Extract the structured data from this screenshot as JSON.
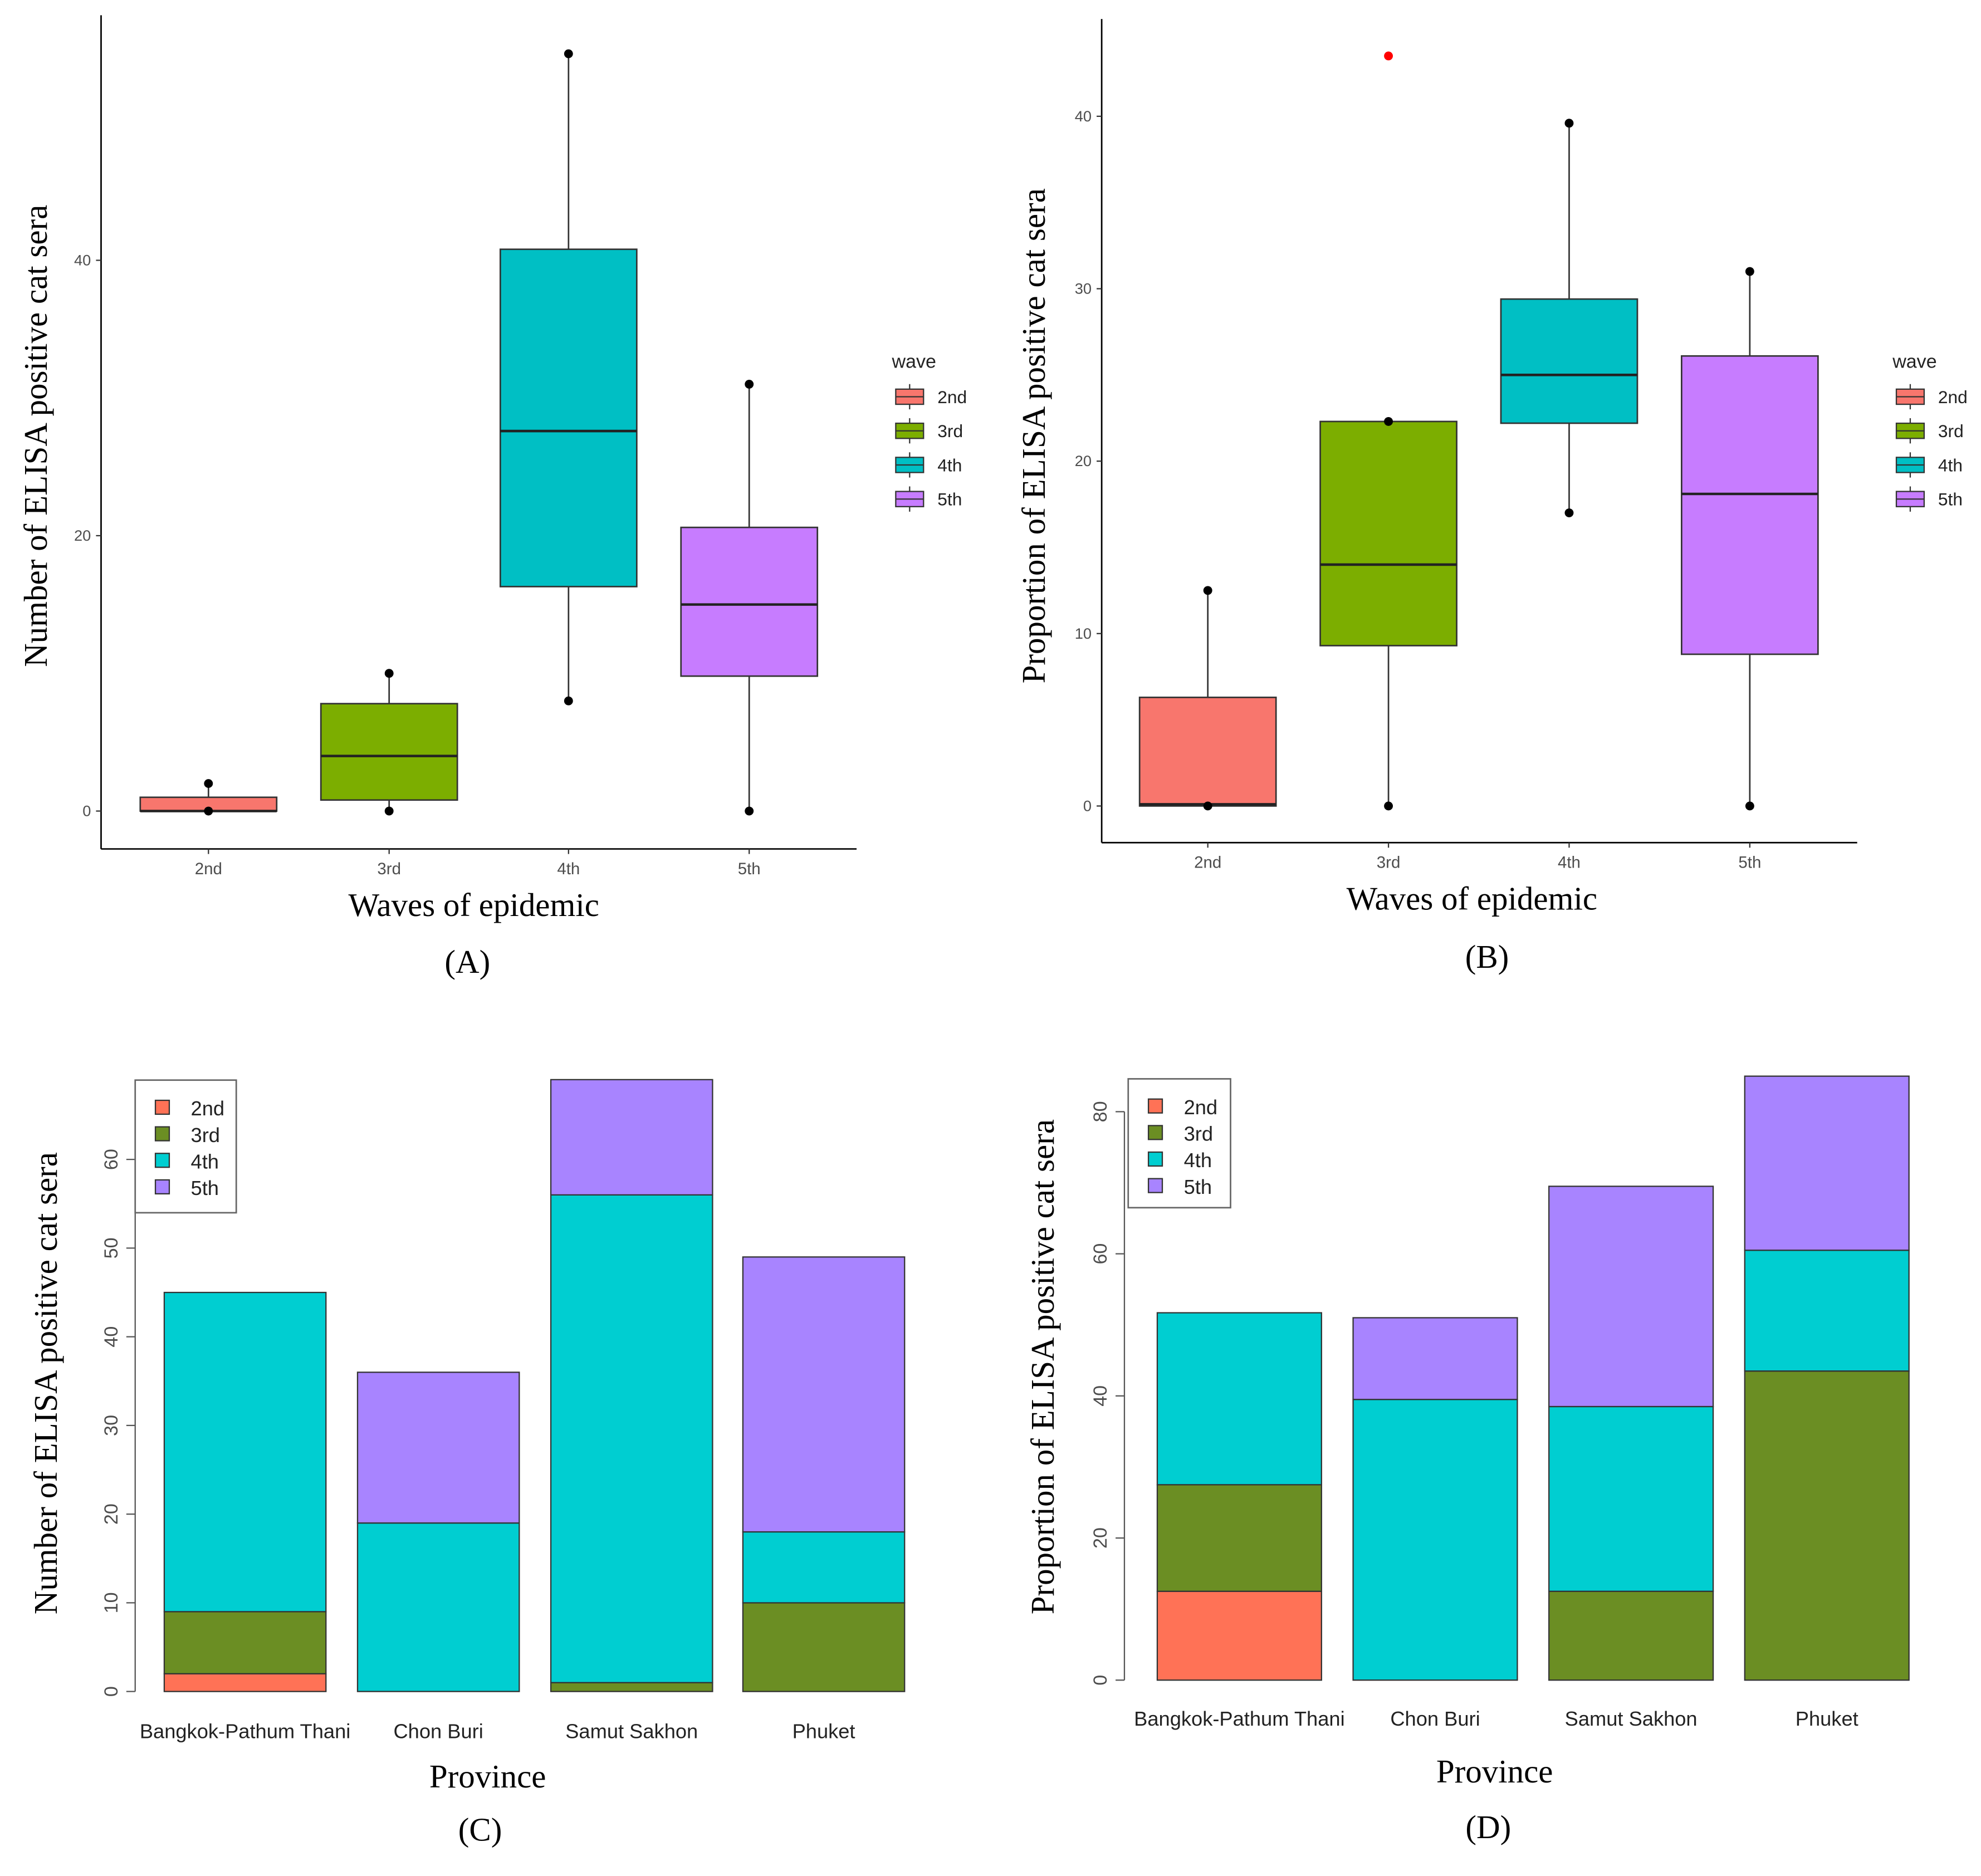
{
  "chart_data": [
    {
      "panel": "(A)",
      "type": "boxplot",
      "xlabel": "Waves of epidemic",
      "ylabel": "Number of  ELISA positive cat sera",
      "categories": [
        "2nd",
        "3rd",
        "4th",
        "5th"
      ],
      "yticks": [
        0,
        20,
        40
      ],
      "ylim": [
        -2.7,
        58
      ],
      "legend": {
        "title": "wave",
        "entries": [
          "2nd",
          "3rd",
          "4th",
          "5th"
        ],
        "placement": "right"
      },
      "colors": [
        "#F8766D",
        "#7CAE00",
        "#00BFC4",
        "#C77CFF"
      ],
      "boxes": [
        {
          "min": 0,
          "q1": 0,
          "median": 0,
          "q3": 1,
          "max": 2
        },
        {
          "min": 0,
          "q1": 0.8,
          "median": 4,
          "q3": 7.8,
          "max": 10
        },
        {
          "min": 8,
          "q1": 16.3,
          "median": 27.6,
          "q3": 40.8,
          "max": 55
        },
        {
          "min": 0,
          "q1": 9.8,
          "median": 15,
          "q3": 20.6,
          "max": 31
        }
      ],
      "outliers": []
    },
    {
      "panel": "(B)",
      "type": "boxplot",
      "xlabel": "Waves of epidemic",
      "ylabel": "Proportion of  ELISA positive cat sera",
      "categories": [
        "2nd",
        "3rd",
        "4th",
        "5th"
      ],
      "yticks": [
        0,
        10,
        20,
        30,
        40
      ],
      "ylim": [
        -2.1,
        45.5
      ],
      "legend": {
        "title": "wave",
        "entries": [
          "2nd",
          "3rd",
          "4th",
          "5th"
        ],
        "placement": "right"
      },
      "colors": [
        "#F8766D",
        "#7CAE00",
        "#00BFC4",
        "#C77CFF"
      ],
      "boxes": [
        {
          "min": 0,
          "q1": 0,
          "median": 0.1,
          "q3": 6.3,
          "max": 12.5
        },
        {
          "min": 0,
          "q1": 9.3,
          "median": 14,
          "q3": 22.3,
          "max": 22.3
        },
        {
          "min": 17,
          "q1": 22.2,
          "median": 25,
          "q3": 29.4,
          "max": 39.6
        },
        {
          "min": 0,
          "q1": 8.8,
          "median": 18.1,
          "q3": 26.1,
          "max": 31
        }
      ],
      "outliers": [
        {
          "category": "3rd",
          "value": 43.5,
          "color": "#FF0000"
        }
      ]
    },
    {
      "panel": "(C)",
      "type": "stacked-bar",
      "xlabel": "Province",
      "ylabel": "Number of  ELISA positive cat sera",
      "categories": [
        "Bangkok-Pathum Thani",
        "Chon Buri",
        "Samut Sakhon",
        "Phuket"
      ],
      "yticks": [
        0,
        10,
        20,
        30,
        40,
        50,
        60
      ],
      "ylim": [
        0,
        69
      ],
      "legend": {
        "entries": [
          "2nd",
          "3rd",
          "4th",
          "5th"
        ],
        "placement": "top-left"
      },
      "colors": [
        "#FF7256",
        "#6B8E23",
        "#00CED1",
        "#A884FF"
      ],
      "series": [
        {
          "name": "2nd",
          "values": [
            2,
            0,
            0,
            0
          ]
        },
        {
          "name": "3rd",
          "values": [
            7,
            0,
            1,
            10
          ]
        },
        {
          "name": "4th",
          "values": [
            36,
            19,
            55,
            8
          ]
        },
        {
          "name": "5th",
          "values": [
            0,
            17,
            13,
            31
          ]
        }
      ]
    },
    {
      "panel": "(D)",
      "type": "stacked-bar",
      "xlabel": "Province",
      "ylabel": "Proportion of  ELISA positive cat sera",
      "categories": [
        "Bangkok-Pathum Thani",
        "Chon Buri",
        "Samut Sakhon",
        "Phuket"
      ],
      "yticks": [
        0,
        20,
        40,
        60,
        80
      ],
      "ylim": [
        0,
        85
      ],
      "legend": {
        "entries": [
          "2nd",
          "3rd",
          "4th",
          "5th"
        ],
        "placement": "top-left"
      },
      "colors": [
        "#FF7256",
        "#6B8E23",
        "#00CED1",
        "#A884FF"
      ],
      "series": [
        {
          "name": "2nd",
          "values": [
            12.5,
            0,
            0,
            0
          ]
        },
        {
          "name": "3rd",
          "values": [
            15,
            0,
            12.5,
            43.5
          ]
        },
        {
          "name": "4th",
          "values": [
            24.2,
            39.5,
            26,
            17
          ]
        },
        {
          "name": "5th",
          "values": [
            0,
            11.5,
            31,
            24.5
          ]
        }
      ]
    }
  ]
}
